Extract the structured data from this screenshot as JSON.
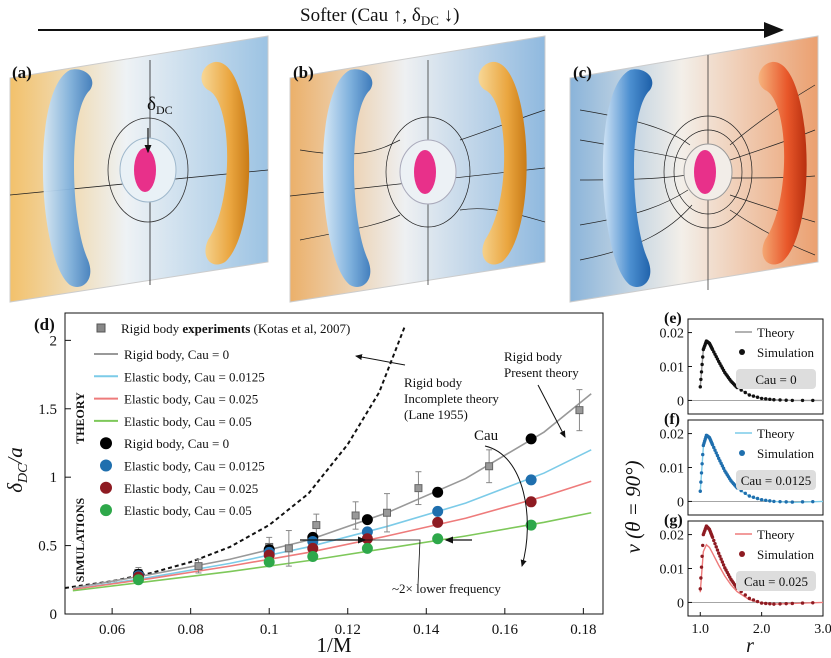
{
  "header": {
    "arrow_label": "Softer (Cau ↑,  δ",
    "arrow_sub": "DC",
    "arrow_tail": " ↓)"
  },
  "panels": {
    "a": "(a)",
    "b": "(b)",
    "c": "(c)",
    "d": "(d)",
    "e": "(e)",
    "f": "(f)",
    "g": "(g)",
    "delta_label": "δ",
    "delta_sub": "DC"
  },
  "colors": {
    "rigid": "#999999",
    "cau0125": "#7ccbe8",
    "cau025": "#ee7b7b",
    "cau05": "#7ec85a",
    "sim0": "#000000",
    "sim0125": "#1f6fae",
    "sim025": "#8e1b22",
    "sim05": "#2ea84a",
    "warm": "#f0a83c",
    "cool": "#6aa3d6",
    "jet": "#e8308a"
  },
  "legend": {
    "experiments_pre": "Rigid body ",
    "experiments_bold": "experiments",
    "experiments_post": " (Kotas et al, 2007)",
    "theory_title": "THEORY",
    "simulations_title": "SIMULATIONS",
    "items": [
      "Rigid body, Cau = 0",
      "Elastic body, Cau = 0.0125",
      "Elastic body, Cau = 0.025",
      "Elastic body, Cau = 0.05",
      "Rigid body, Cau = 0",
      "Elastic body, Cau = 0.0125",
      "Elastic body, Cau = 0.025",
      "Elastic body, Cau = 0.05"
    ]
  },
  "annotations": {
    "lane_1": "Rigid body",
    "lane_2": "Incomplete theory",
    "lane_3": "(Lane 1955)",
    "present_1": "Rigid body",
    "present_2": "Present theory",
    "cau": "Cau",
    "freq": "~2× lower frequency"
  },
  "chart_data": [
    {
      "type": "line",
      "panel": "(d)",
      "xlabel": "1/M",
      "ylabel": "δDC/a",
      "xlim": [
        0.048,
        0.185
      ],
      "ylim": [
        0,
        2.2
      ],
      "x_ticks": [
        "0.06",
        "0.08",
        "0.1",
        "0.12",
        "0.14",
        "0.16",
        "0.18"
      ],
      "y_ticks": [
        "0",
        "0.5",
        "1",
        "1.5",
        "2"
      ],
      "series": [
        {
          "name": "Rigid body, Cau = 0",
          "style": "line",
          "x": [
            0.05,
            0.07,
            0.09,
            0.11,
            0.13,
            0.15,
            0.17,
            0.182
          ],
          "y": [
            0.19,
            0.29,
            0.4,
            0.54,
            0.74,
            0.99,
            1.33,
            1.61
          ]
        },
        {
          "name": "Elastic body, Cau = 0.0125",
          "style": "line",
          "x": [
            0.05,
            0.07,
            0.09,
            0.11,
            0.13,
            0.15,
            0.17,
            0.182
          ],
          "y": [
            0.18,
            0.27,
            0.37,
            0.49,
            0.64,
            0.81,
            1.03,
            1.2
          ]
        },
        {
          "name": "Elastic body, Cau = 0.025",
          "style": "line",
          "x": [
            0.05,
            0.07,
            0.09,
            0.11,
            0.13,
            0.15,
            0.17,
            0.182
          ],
          "y": [
            0.18,
            0.26,
            0.35,
            0.45,
            0.57,
            0.7,
            0.86,
            0.97
          ]
        },
        {
          "name": "Elastic body, Cau = 0.05",
          "style": "line",
          "x": [
            0.05,
            0.07,
            0.09,
            0.11,
            0.13,
            0.15,
            0.17,
            0.182
          ],
          "y": [
            0.17,
            0.24,
            0.31,
            0.39,
            0.48,
            0.57,
            0.67,
            0.74
          ]
        },
        {
          "name": "Rigid body, Cau = 0",
          "style": "marker",
          "x": [
            0.0667,
            0.1,
            0.1111,
            0.125,
            0.1429,
            0.1667
          ],
          "y": [
            0.29,
            0.47,
            0.56,
            0.69,
            0.89,
            1.28
          ]
        },
        {
          "name": "Elastic body, Cau = 0.0125",
          "style": "marker",
          "x": [
            0.0667,
            0.1,
            0.1111,
            0.125,
            0.1429,
            0.1667
          ],
          "y": [
            0.28,
            0.45,
            0.53,
            0.6,
            0.75,
            0.98
          ]
        },
        {
          "name": "Elastic body, Cau = 0.025",
          "style": "marker",
          "x": [
            0.0667,
            0.1,
            0.1111,
            0.125,
            0.1429,
            0.1667
          ],
          "y": [
            0.27,
            0.43,
            0.48,
            0.55,
            0.67,
            0.82
          ]
        },
        {
          "name": "Elastic body, Cau = 0.05",
          "style": "marker",
          "x": [
            0.0667,
            0.1,
            0.1111,
            0.125,
            0.1429,
            0.1667
          ],
          "y": [
            0.25,
            0.38,
            0.42,
            0.48,
            0.55,
            0.65
          ]
        }
      ],
      "experiments": {
        "x": [
          0.0667,
          0.082,
          0.1,
          0.105,
          0.112,
          0.122,
          0.13,
          0.138,
          0.156,
          0.179
        ],
        "y": [
          0.3,
          0.35,
          0.49,
          0.48,
          0.65,
          0.72,
          0.74,
          0.92,
          1.08,
          1.49
        ],
        "err": [
          0.04,
          0.05,
          0.07,
          0.13,
          0.08,
          0.1,
          0.14,
          0.12,
          0.12,
          0.15
        ]
      },
      "lane_theory": {
        "x": [
          0.048,
          0.06,
          0.07,
          0.08,
          0.09,
          0.1,
          0.11,
          0.12,
          0.128,
          0.1345
        ],
        "y": [
          0.19,
          0.24,
          0.3,
          0.38,
          0.49,
          0.65,
          0.88,
          1.24,
          1.62,
          2.1
        ]
      }
    },
    {
      "type": "line",
      "panel": "(e)",
      "xlabel": "",
      "ylabel": "",
      "xlim": [
        0.8,
        3.0
      ],
      "ylim": [
        -0.004,
        0.024
      ],
      "y_ticks": [
        "0",
        "0.01",
        "0.02"
      ],
      "x_ticks": [],
      "box": "Cau = 0",
      "series": [
        {
          "name": "Theory",
          "style": "line",
          "x": [
            1.0,
            1.05,
            1.1,
            1.15,
            1.2,
            1.3,
            1.4,
            1.5,
            1.6,
            1.8,
            2.0,
            2.2,
            2.5,
            3.0
          ],
          "y": [
            0.004,
            0.015,
            0.0175,
            0.0168,
            0.015,
            0.0115,
            0.0082,
            0.0057,
            0.0038,
            0.0016,
            0.0006,
            0.0002,
            0.0,
            0.0
          ]
        },
        {
          "name": "Simulation",
          "style": "marker",
          "x": [
            1.0,
            1.05,
            1.1,
            1.15,
            1.2,
            1.3,
            1.4,
            1.5,
            1.6,
            1.8,
            2.0,
            2.2,
            2.5,
            3.0
          ],
          "y": [
            0.004,
            0.015,
            0.0175,
            0.0168,
            0.015,
            0.0115,
            0.0082,
            0.0057,
            0.0038,
            0.0016,
            0.0006,
            0.0002,
            0.0,
            0.0
          ]
        }
      ]
    },
    {
      "type": "line",
      "panel": "(f)",
      "xlabel": "",
      "ylabel": "",
      "xlim": [
        0.8,
        3.0
      ],
      "ylim": [
        -0.004,
        0.024
      ],
      "y_ticks": [
        "0",
        "0.01",
        "0.02"
      ],
      "x_ticks": [],
      "box": "Cau = 0.0125",
      "series": [
        {
          "name": "Theory",
          "style": "line",
          "x": [
            1.0,
            1.05,
            1.1,
            1.15,
            1.2,
            1.3,
            1.4,
            1.5,
            1.6,
            1.8,
            2.0,
            2.2,
            2.5,
            3.0
          ],
          "y": [
            0.003,
            0.016,
            0.0192,
            0.0185,
            0.0165,
            0.0125,
            0.0088,
            0.006,
            0.0039,
            0.0015,
            0.0004,
            0.0,
            -0.0003,
            0.0
          ]
        },
        {
          "name": "Simulation",
          "style": "marker",
          "x": [
            1.0,
            1.05,
            1.1,
            1.15,
            1.2,
            1.3,
            1.4,
            1.5,
            1.6,
            1.8,
            2.0,
            2.2,
            2.5,
            3.0
          ],
          "y": [
            0.003,
            0.0165,
            0.0195,
            0.0188,
            0.0167,
            0.0127,
            0.009,
            0.0061,
            0.004,
            0.0016,
            0.0005,
            0.0,
            -0.0002,
            0.0
          ]
        }
      ]
    },
    {
      "type": "line",
      "panel": "(g)",
      "xlabel": "r",
      "ylabel": "",
      "xlim": [
        0.8,
        3.0
      ],
      "ylim": [
        -0.004,
        0.024
      ],
      "y_ticks": [
        "0",
        "0.01",
        "0.02"
      ],
      "x_ticks": [
        "1.0",
        "2.0",
        "3.0"
      ],
      "box": "Cau = 0.025",
      "series": [
        {
          "name": "Theory",
          "style": "line",
          "x": [
            1.0,
            1.05,
            1.1,
            1.15,
            1.2,
            1.3,
            1.4,
            1.5,
            1.6,
            1.8,
            2.0,
            2.2,
            2.5,
            3.0
          ],
          "y": [
            0.003,
            0.015,
            0.017,
            0.0162,
            0.0145,
            0.011,
            0.0078,
            0.0052,
            0.0032,
            0.0008,
            -0.0002,
            -0.0005,
            -0.0003,
            0.0
          ]
        },
        {
          "name": "Simulation",
          "style": "marker",
          "x": [
            1.0,
            1.05,
            1.1,
            1.15,
            1.2,
            1.3,
            1.4,
            1.5,
            1.6,
            1.8,
            2.0,
            2.2,
            2.5,
            3.0
          ],
          "y": [
            0.004,
            0.02,
            0.0225,
            0.0215,
            0.0192,
            0.0145,
            0.0102,
            0.0068,
            0.0042,
            0.0012,
            -0.0002,
            -0.0005,
            -0.0003,
            0.0
          ]
        }
      ]
    }
  ],
  "shared_ylabel": "v (θ = 90°)",
  "legend_small": {
    "theory": "Theory",
    "simulation": "Simulation"
  }
}
